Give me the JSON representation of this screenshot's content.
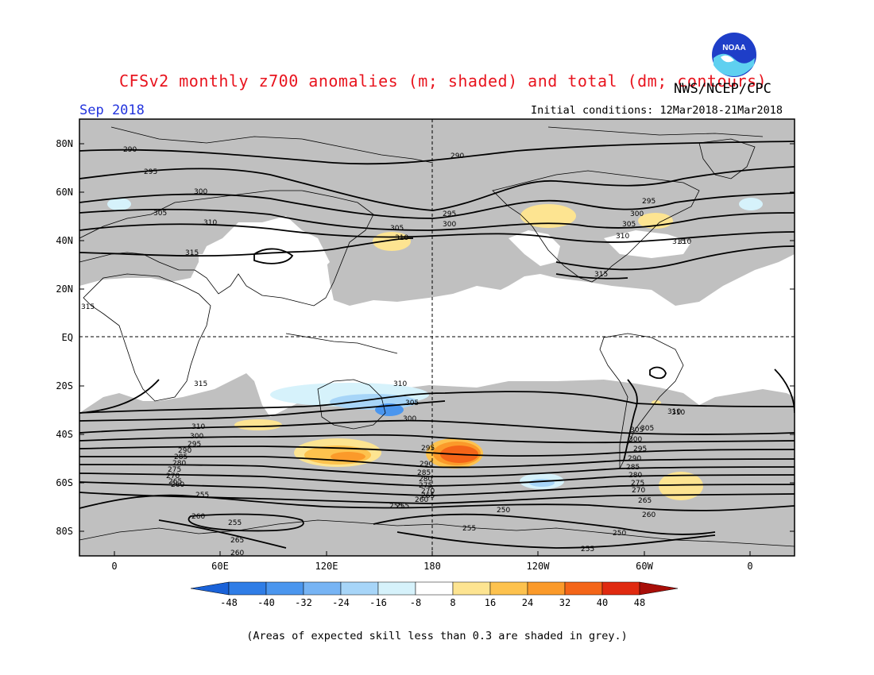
{
  "header": {
    "title": "CFSv2 monthly z700 anomalies (m; shaded) and total (dm; contours)",
    "agency": "NWS/NCEP/CPC",
    "month": "Sep 2018",
    "initial_conditions": "Initial conditions: 12Mar2018-21Mar2018",
    "logo_text": "NOAA"
  },
  "map": {
    "lat_labels": [
      "80N",
      "60N",
      "40N",
      "20N",
      "EQ",
      "20S",
      "40S",
      "60S",
      "80S"
    ],
    "lon_labels": [
      "0",
      "60E",
      "120E",
      "180",
      "120W",
      "60W",
      "0"
    ],
    "contour_labels": [
      "290",
      "295",
      "300",
      "305",
      "310",
      "315",
      "290",
      "295",
      "300",
      "305",
      "310",
      "315",
      "295",
      "300",
      "305",
      "310",
      "315",
      "310",
      "305",
      "300",
      "295",
      "290",
      "285",
      "280",
      "275",
      "270",
      "265",
      "260",
      "255",
      "250",
      "315",
      "310",
      "300",
      "295",
      "290",
      "285",
      "280",
      "275",
      "270",
      "265",
      "260",
      "255",
      "260",
      "255",
      "265",
      "260",
      "310",
      "305",
      "300",
      "295",
      "290",
      "285",
      "280",
      "275",
      "270",
      "265",
      "260",
      "255",
      "250",
      "255",
      "255",
      "305",
      "310",
      "315",
      "310"
    ],
    "colors": {
      "grey_mask": "#c0c0c0",
      "contour": "#000000",
      "land_outline": "#000000"
    }
  },
  "colorbar": {
    "ticks": [
      "-48",
      "-40",
      "-32",
      "-24",
      "-16",
      "-8",
      "8",
      "16",
      "24",
      "32",
      "40",
      "48"
    ],
    "colors": [
      "#1a62d8",
      "#2f7de6",
      "#4b96ee",
      "#77b4f4",
      "#a7d5f8",
      "#d6f2fb",
      "#ffffff",
      "#fde491",
      "#fdc24e",
      "#fb9a2a",
      "#f46518",
      "#e02a10",
      "#a80e08"
    ]
  },
  "caption": "(Areas of expected skill less than 0.3 are shaded in grey.)"
}
